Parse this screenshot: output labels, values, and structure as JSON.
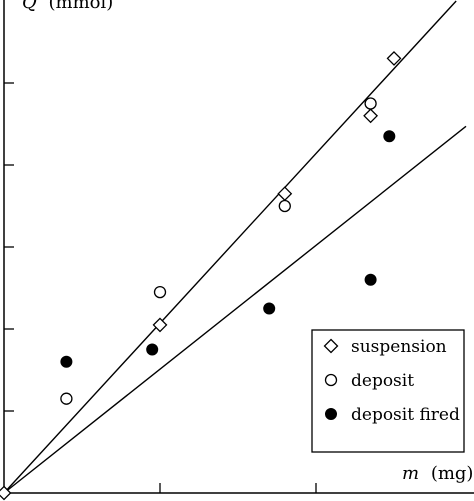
{
  "chart_data": {
    "type": "scatter",
    "title": "",
    "xlabel": {
      "symbol": "m",
      "unit": "(mg)"
    },
    "ylabel": {
      "symbol": "Q",
      "unit": "(mmol)"
    },
    "xlim": [
      0,
      3.0
    ],
    "ylim": [
      0,
      6.0
    ],
    "x_ticks": [
      0,
      1,
      2
    ],
    "y_ticks": [
      0,
      1,
      2,
      3,
      4,
      5
    ],
    "grid": false,
    "legend_position": "bottom-right",
    "series": [
      {
        "name": "suspension",
        "marker": "diamond-open",
        "points": [
          [
            0,
            0
          ],
          [
            1.0,
            2.05
          ],
          [
            1.8,
            3.65
          ],
          [
            2.35,
            4.6
          ],
          [
            2.5,
            5.3
          ]
        ]
      },
      {
        "name": "deposit",
        "marker": "circle-open",
        "points": [
          [
            0.4,
            1.15
          ],
          [
            1.0,
            2.45
          ],
          [
            1.8,
            3.5
          ],
          [
            2.35,
            4.75
          ]
        ]
      },
      {
        "name": "deposit fired",
        "marker": "circle-filled",
        "points": [
          [
            0.4,
            1.6
          ],
          [
            0.95,
            1.75
          ],
          [
            1.7,
            2.25
          ],
          [
            2.35,
            2.6
          ],
          [
            2.47,
            4.35
          ]
        ]
      }
    ],
    "fit_lines": [
      {
        "slope": 2.07
      },
      {
        "slope": 1.51
      }
    ]
  }
}
